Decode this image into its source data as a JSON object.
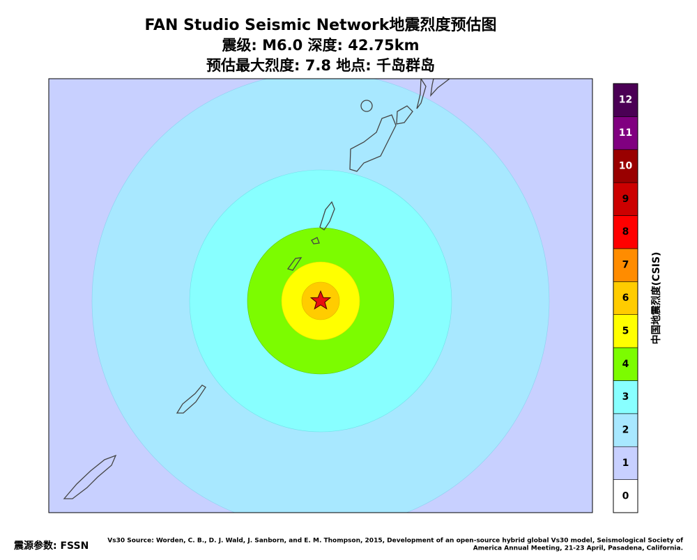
{
  "header": {
    "title": "FAN Studio Seismic Network地震烈度预估图",
    "line2": "震级: M6.0  深度: 42.75km",
    "line3": "预估最大烈度: 7.8  地点: 千岛群岛"
  },
  "colorbar": {
    "label": "中国地震烈度(CSIS)",
    "levels": [
      {
        "label": "0",
        "color": "#ffffff"
      },
      {
        "label": "1",
        "color": "#c8d0ff"
      },
      {
        "label": "2",
        "color": "#a8e8ff"
      },
      {
        "label": "3",
        "color": "#88ffff"
      },
      {
        "label": "4",
        "color": "#7cfc00"
      },
      {
        "label": "5",
        "color": "#ffff00"
      },
      {
        "label": "6",
        "color": "#ffcc00"
      },
      {
        "label": "7",
        "color": "#ff8c00"
      },
      {
        "label": "8",
        "color": "#ff0000"
      },
      {
        "label": "9",
        "color": "#cc0000"
      },
      {
        "label": "10",
        "color": "#990000"
      },
      {
        "label": "11",
        "color": "#800080"
      },
      {
        "label": "12",
        "color": "#4b0055"
      }
    ]
  },
  "footer": {
    "source": "震源参数: FSSN",
    "credit_line1": "Vs30 Source: Worden, C. B., D. J. Wald, J. Sanborn, and E. M. Thompson, 2015, Development of an open-source hybrid global Vs30 model, Seismological Society of",
    "credit_line2": "America Annual Meeting, 21-23 April, Pasadena, California."
  }
}
